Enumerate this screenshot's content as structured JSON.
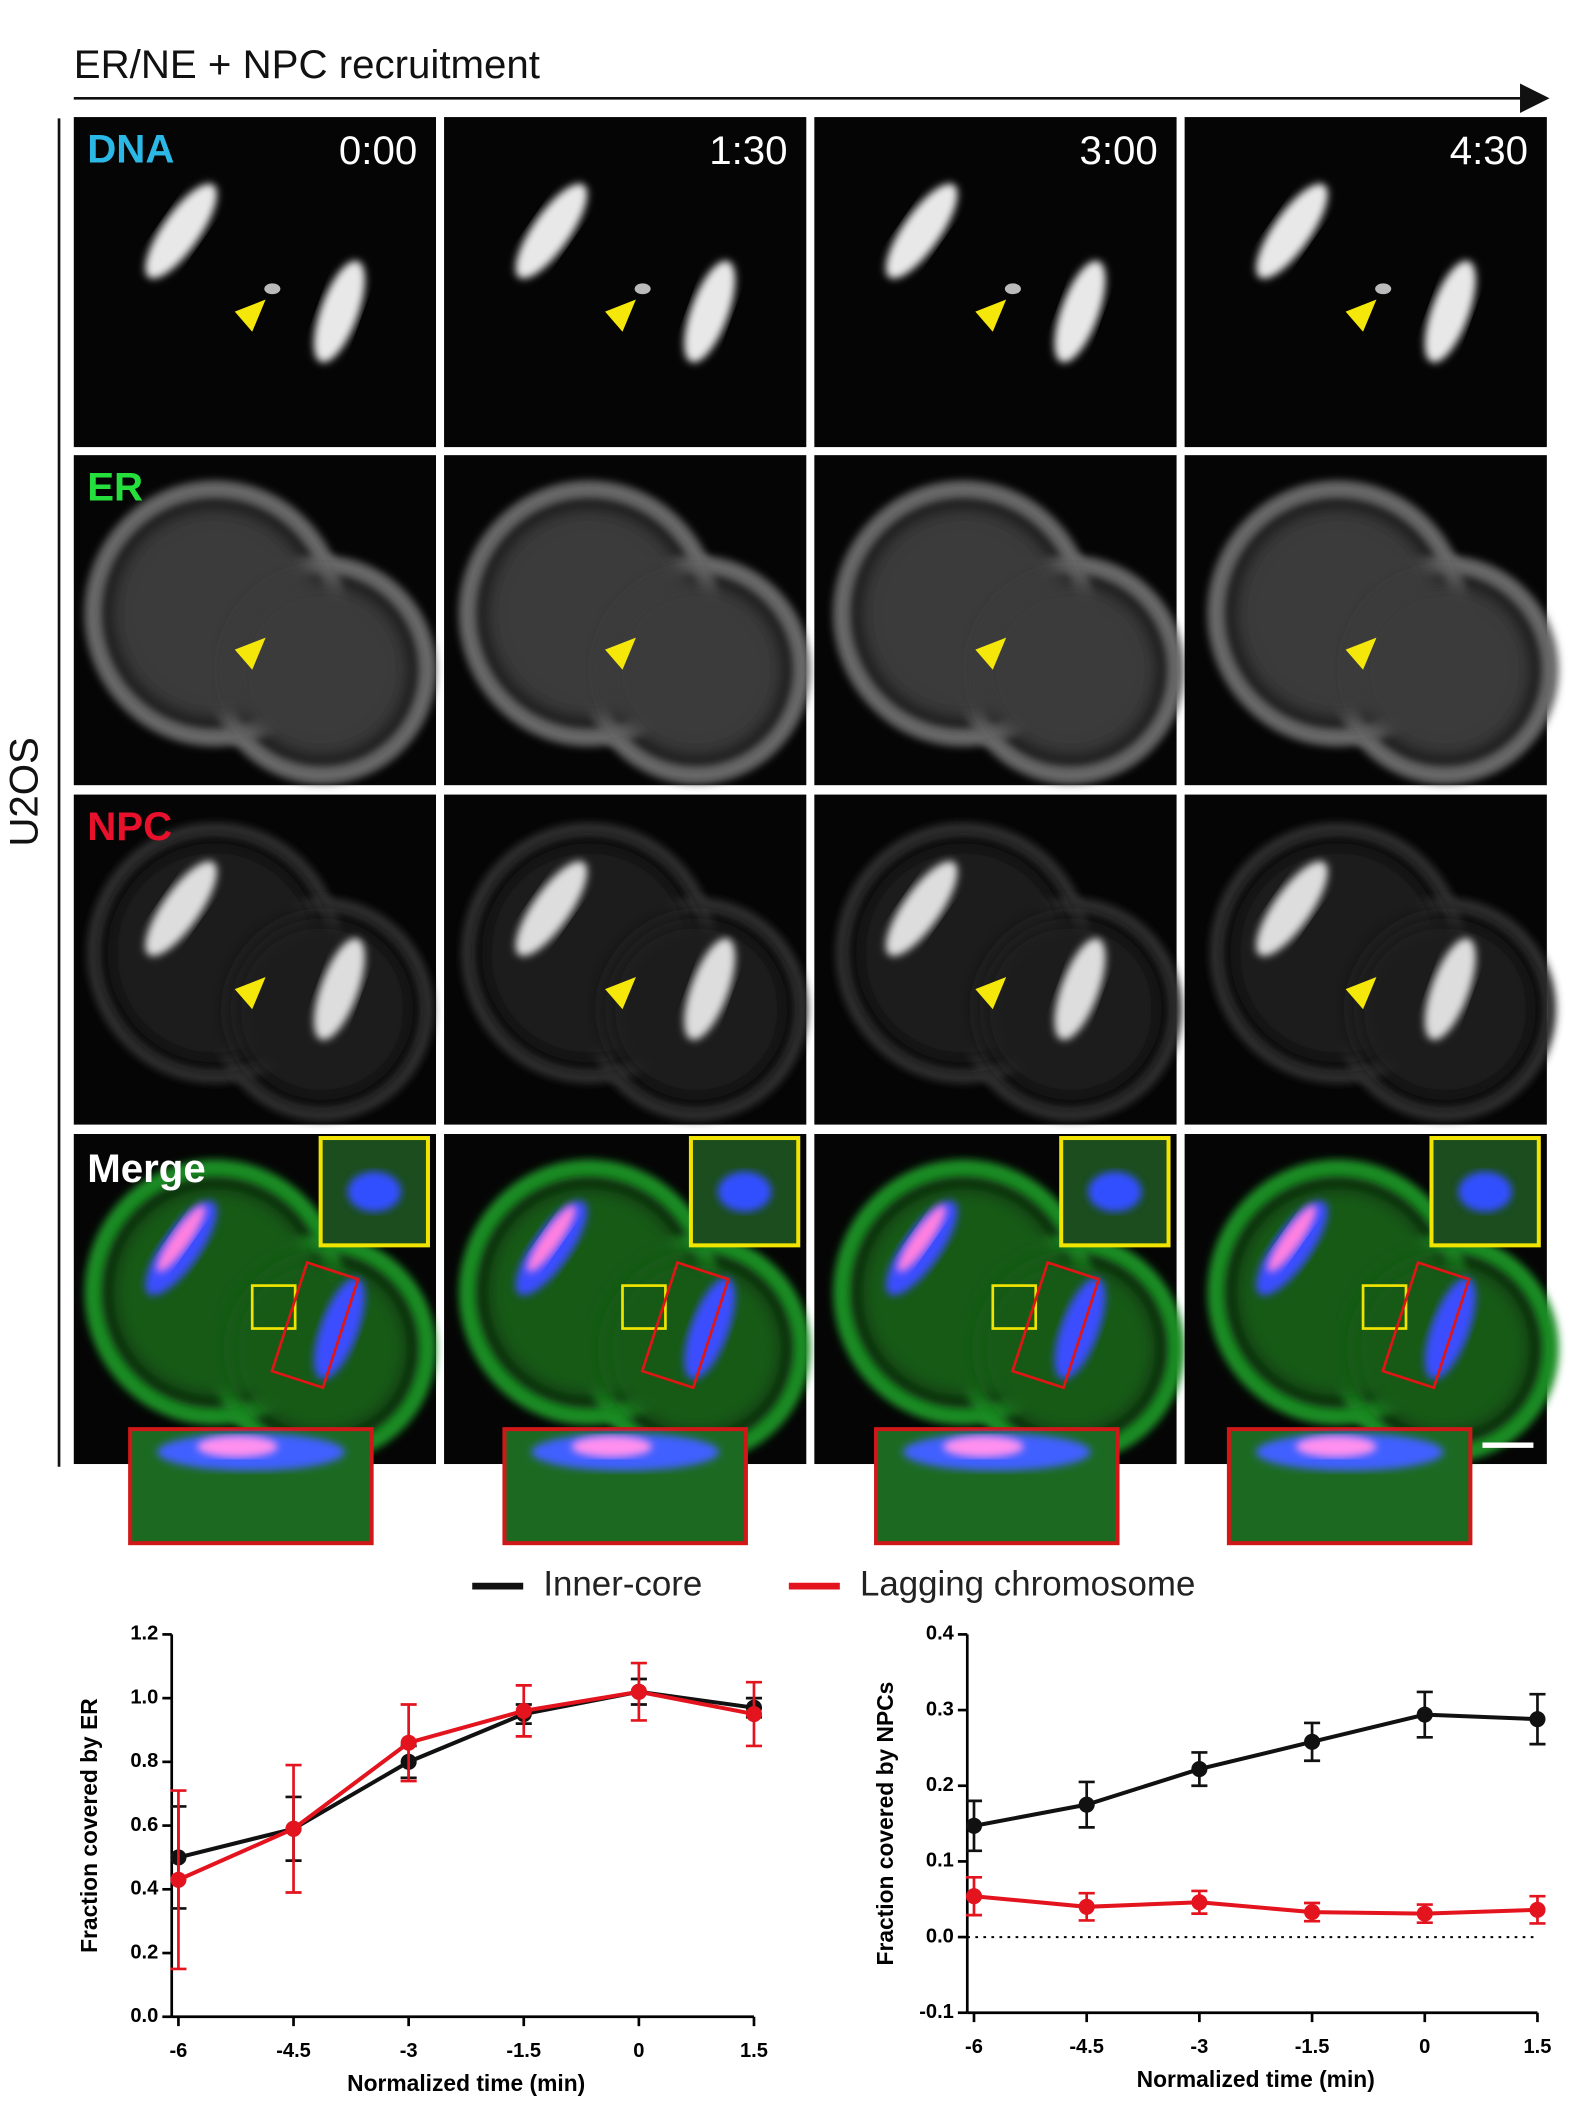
{
  "figure": {
    "title": "ER/NE + NPC recruitment",
    "cell_line": "U2OS",
    "times": [
      "0:00",
      "1:30",
      "3:00",
      "4:30"
    ],
    "rows": [
      {
        "label": "DNA",
        "color": "#2bb8e6"
      },
      {
        "label": "ER",
        "color": "#25e03c"
      },
      {
        "label": "NPC",
        "color": "#e8102a"
      },
      {
        "label": "Merge",
        "color": "#ffffff"
      }
    ]
  },
  "chart_data": [
    {
      "type": "line",
      "ylabel": "Fraction covered by ER",
      "xlabel": "Normalized time (min)",
      "x": [
        -6,
        -4.5,
        -3,
        -1.5,
        0,
        1.5
      ],
      "xlim": [
        -6,
        1.5
      ],
      "xticks": [
        -6,
        -4.5,
        -3,
        -1.5,
        0,
        1.5
      ],
      "ylim": [
        0,
        1.2
      ],
      "yticks": [
        {
          "value": 0,
          "label": "0.0"
        },
        0.2,
        0.4,
        0.6,
        0.8,
        {
          "value": 1,
          "label": "1.0"
        },
        1.2
      ],
      "series": [
        {
          "name": "Inner-core",
          "color": "#111111",
          "values": [
            0.5,
            0.59,
            0.8,
            0.95,
            1.02,
            0.97
          ],
          "errors": [
            0.16,
            0.1,
            0.05,
            0.03,
            0.04,
            0.03
          ]
        },
        {
          "name": "Lagging chromosome",
          "color": "#e3141e",
          "values": [
            0.43,
            0.59,
            0.86,
            0.96,
            1.02,
            0.95
          ],
          "errors": [
            0.28,
            0.2,
            0.12,
            0.08,
            0.09,
            0.1
          ]
        }
      ]
    },
    {
      "type": "line",
      "ylabel": "Fraction covered by NPCs",
      "xlabel": "Normalized time (min)",
      "x": [
        -6,
        -4.5,
        -3,
        -1.5,
        0,
        1.5
      ],
      "xlim": [
        -6,
        1.5
      ],
      "xticks": [
        -6,
        -4.5,
        -3,
        -1.5,
        0,
        1.5
      ],
      "ylim": [
        -0.1,
        0.4
      ],
      "yticks": [
        -0.1,
        {
          "value": 0,
          "label": "0.0"
        },
        0.1,
        0.2,
        0.3,
        0.4
      ],
      "reference_line": 0,
      "series": [
        {
          "name": "Inner-core",
          "color": "#111111",
          "values": [
            0.147,
            0.175,
            0.222,
            0.258,
            0.294,
            0.288
          ],
          "errors": [
            0.033,
            0.03,
            0.022,
            0.025,
            0.03,
            0.033
          ]
        },
        {
          "name": "Lagging chromosome",
          "color": "#e3141e",
          "values": [
            0.054,
            0.04,
            0.046,
            0.033,
            0.031,
            0.036
          ],
          "errors": [
            0.025,
            0.018,
            0.015,
            0.012,
            0.012,
            0.018
          ]
        }
      ]
    }
  ]
}
